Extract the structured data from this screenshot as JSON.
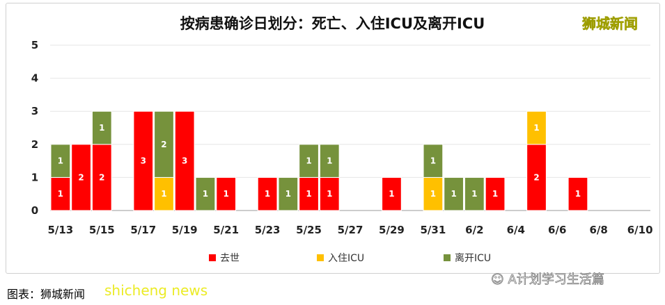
{
  "logo": "狮城新闻",
  "caption": "图表：狮城新闻",
  "watermark": "shicheng news",
  "wechat": "A计划学习生活篇",
  "colors": {
    "death": "#ff0000",
    "icu_in": "#ffc000",
    "icu_out": "#76923c"
  },
  "chart_data": {
    "type": "bar",
    "stacked": true,
    "title": "按病患确诊日划分：死亡、入住ICU及离开ICU",
    "categories": [
      "5/13",
      "5/14",
      "5/15",
      "5/16",
      "5/17",
      "5/18",
      "5/19",
      "5/20",
      "5/21",
      "5/22",
      "5/23",
      "5/24",
      "5/25",
      "5/26",
      "5/27",
      "5/28",
      "5/29",
      "5/30",
      "5/31",
      "6/1",
      "6/2",
      "6/3",
      "6/4",
      "6/5",
      "6/6",
      "6/7",
      "6/8",
      "6/9",
      "6/10"
    ],
    "xtick_labels": [
      "5/13",
      "5/15",
      "5/17",
      "5/19",
      "5/21",
      "5/23",
      "5/25",
      "5/27",
      "5/29",
      "5/31",
      "6/2",
      "6/4",
      "6/6",
      "6/8",
      "6/10"
    ],
    "yticks": [
      "0",
      "1",
      "2",
      "3",
      "4",
      "5"
    ],
    "ylim": [
      0,
      5
    ],
    "grid": true,
    "legend_position": "bottom",
    "series": [
      {
        "name": "去世",
        "values": [
          1,
          2,
          2,
          0,
          3,
          0,
          3,
          0,
          1,
          0,
          1,
          0,
          1,
          1,
          0,
          0,
          1,
          0,
          0,
          0,
          0,
          1,
          0,
          2,
          0,
          1,
          0,
          0,
          0
        ]
      },
      {
        "name": "入住ICU",
        "values": [
          0,
          0,
          0,
          0,
          0,
          1,
          0,
          0,
          0,
          0,
          0,
          0,
          0,
          0,
          0,
          0,
          0,
          0,
          1,
          0,
          0,
          0,
          0,
          1,
          0,
          0,
          0,
          0,
          0
        ]
      },
      {
        "name": "离开ICU",
        "values": [
          1,
          0,
          1,
          0,
          0,
          2,
          0,
          1,
          0,
          0,
          0,
          1,
          1,
          1,
          0,
          0,
          0,
          0,
          1,
          1,
          1,
          0,
          0,
          0,
          0,
          0,
          0,
          0,
          0
        ]
      }
    ]
  }
}
